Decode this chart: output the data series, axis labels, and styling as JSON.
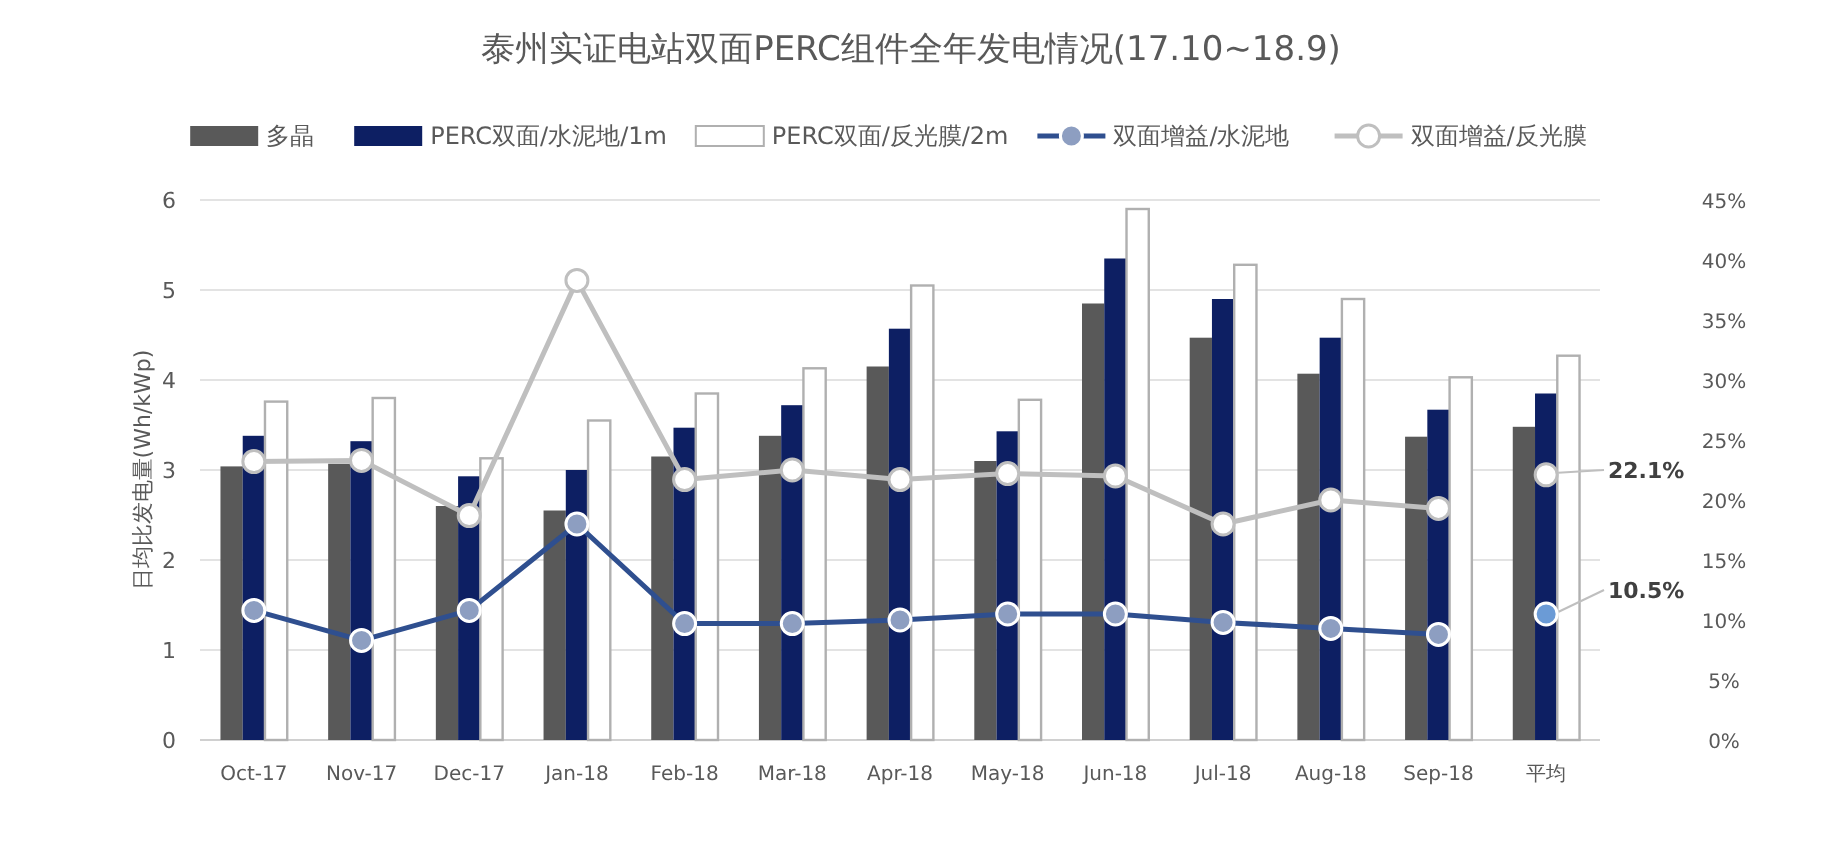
{
  "chart_data": {
    "type": "bar",
    "title": "泰州实证电站双面PERC组件全年发电情况(17.10~18.9)",
    "ylabel": "日均比发电量(Wh/kWp)",
    "categories": [
      "Oct-17",
      "Nov-17",
      "Dec-17",
      "Jan-18",
      "Feb-18",
      "Mar-18",
      "Apr-18",
      "May-18",
      "Jun-18",
      "Jul-18",
      "Aug-18",
      "Sep-18",
      "平均"
    ],
    "series": [
      {
        "name": "多晶",
        "color": "#595959",
        "values": [
          3.04,
          3.07,
          2.6,
          2.55,
          3.15,
          3.38,
          4.15,
          3.1,
          4.85,
          4.47,
          4.07,
          3.37,
          3.48
        ]
      },
      {
        "name": "PERC双面/水泥地/1m",
        "color": "#0d1f63",
        "values": [
          3.38,
          3.32,
          2.93,
          3.0,
          3.47,
          3.72,
          4.57,
          3.43,
          5.35,
          4.9,
          4.47,
          3.67,
          3.85
        ]
      },
      {
        "name": "PERC双面/反光膜/2m",
        "color": "#ffffff",
        "values": [
          3.76,
          3.8,
          3.13,
          3.55,
          3.85,
          4.13,
          5.05,
          3.78,
          5.9,
          5.28,
          4.9,
          4.03,
          4.27
        ]
      },
      {
        "name": "双面增益/水泥地",
        "type": "line",
        "axis": "y2",
        "color": "#2f4f8f",
        "marker": "circle",
        "values": [
          10.8,
          8.3,
          10.8,
          18.0,
          9.7,
          9.7,
          10.0,
          10.5,
          10.5,
          9.8,
          9.3,
          8.8,
          null
        ]
      },
      {
        "name": "双面增益/反光膜",
        "type": "line",
        "axis": "y2",
        "color": "#bfbfbf",
        "marker": "circle",
        "values": [
          23.2,
          23.3,
          18.7,
          38.3,
          21.7,
          22.5,
          21.7,
          22.2,
          22.0,
          18.0,
          20.0,
          19.3,
          null
        ]
      },
      {
        "type": "scatter",
        "axis": "y2",
        "color": "#bfbfbf",
        "marker": "circle",
        "x": [
          "平均"
        ],
        "values": [
          22.1
        ],
        "value_labels": [
          "22.1%"
        ]
      },
      {
        "type": "scatter",
        "axis": "y2",
        "color": "#6b9bd6",
        "marker": "circle",
        "x": [
          "平均"
        ],
        "values": [
          10.5
        ],
        "value_labels": [
          "10.5%"
        ]
      }
    ],
    "ylim": [
      0,
      6
    ],
    "yticks": [
      0,
      1,
      2,
      3,
      4,
      5,
      6
    ],
    "y2lim": [
      0,
      45
    ],
    "y2ticks": [
      {
        "value": 0,
        "label": "0%"
      },
      {
        "value": 5,
        "label": "5%"
      },
      {
        "value": 10,
        "label": "10%"
      },
      {
        "value": 15,
        "label": "15%"
      },
      {
        "value": 20,
        "label": "20%"
      },
      {
        "value": 25,
        "label": "25%"
      },
      {
        "value": 30,
        "label": "30%"
      },
      {
        "value": 35,
        "label": "35%"
      },
      {
        "value": 40,
        "label": "40%"
      },
      {
        "value": 45,
        "label": "45%"
      }
    ],
    "grid": "y",
    "legend": "top"
  }
}
